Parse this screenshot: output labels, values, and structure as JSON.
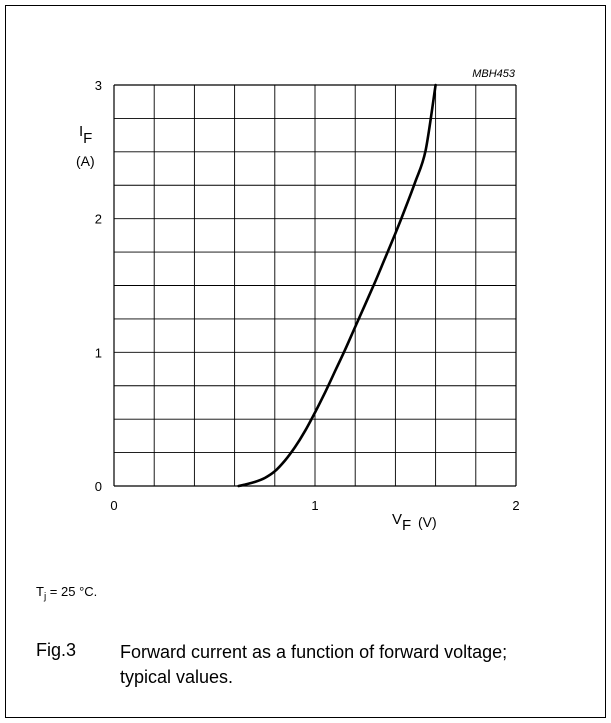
{
  "figure": {
    "code": "MBH453",
    "caption_number": "Fig.3",
    "caption_text": "Forward current as a function of forward voltage; typical values.",
    "condition_symbol": "T",
    "condition_sub": "j",
    "condition_value": " = 25 °C."
  },
  "chart_data": {
    "type": "line",
    "title": "",
    "xlabel": "V",
    "xlabel_sub": "F",
    "xlabel_unit": "(V)",
    "ylabel": "I",
    "ylabel_sub": "F",
    "ylabel_unit": "(A)",
    "xlim": [
      0,
      2
    ],
    "ylim": [
      0,
      3
    ],
    "x_ticks": [
      0,
      1,
      2
    ],
    "y_ticks": [
      0,
      1,
      2,
      3
    ],
    "grid": true,
    "grid_x_step": 0.2,
    "grid_y_step": 0.25,
    "series": [
      {
        "x": [
          0.62,
          0.65,
          0.7,
          0.75,
          0.8,
          0.85,
          0.9,
          0.95,
          1.0,
          1.05,
          1.1,
          1.15,
          1.2,
          1.25,
          1.3,
          1.35,
          1.4,
          1.45,
          1.5,
          1.55,
          1.6
        ],
        "y": [
          0.0,
          0.01,
          0.03,
          0.06,
          0.11,
          0.19,
          0.29,
          0.41,
          0.55,
          0.7,
          0.86,
          1.02,
          1.19,
          1.36,
          1.53,
          1.71,
          1.89,
          2.08,
          2.28,
          2.51,
          3.0
        ]
      }
    ],
    "colors": {
      "line": "#000000",
      "grid": "#000000"
    }
  }
}
